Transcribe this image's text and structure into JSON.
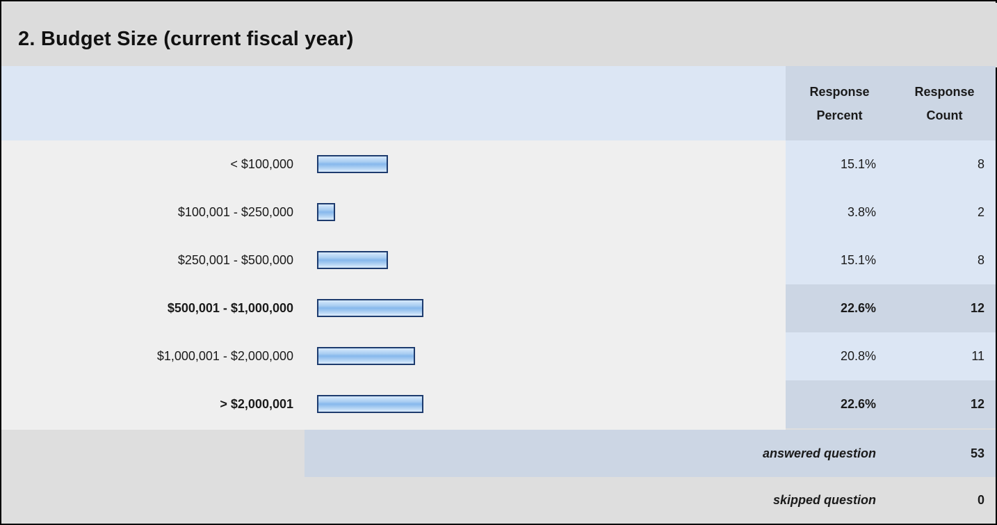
{
  "title": "2. Budget Size (current fiscal year)",
  "headers": {
    "percent_line1": "Response",
    "percent_line2": "Percent",
    "count_line1": "Response",
    "count_line2": "Count"
  },
  "chart_data": {
    "type": "bar",
    "orientation": "horizontal",
    "title": "2. Budget Size (current fiscal year)",
    "categories": [
      "< $100,000",
      "$100,001 - $250,000",
      "$250,001 - $500,000",
      "$500,001 - $1,000,000",
      "$1,000,001 - $2,000,000",
      "> $2,000,001"
    ],
    "values": [
      15.1,
      3.8,
      15.1,
      22.6,
      20.8,
      22.6
    ],
    "percent_labels": [
      "15.1%",
      "3.8%",
      "15.1%",
      "22.6%",
      "20.8%",
      "22.6%"
    ],
    "counts": [
      "8",
      "2",
      "8",
      "12",
      "11",
      "12"
    ],
    "highlighted": [
      false,
      false,
      false,
      true,
      false,
      true
    ],
    "xlim": [
      0,
      100
    ]
  },
  "summary": {
    "answered_label": "answered question",
    "answered_value": "53",
    "skipped_label": "skipped question",
    "skipped_value": "0"
  },
  "colors": {
    "bar_border": "#1d3b6e",
    "bar_fill": "#a9cdf2",
    "header_band": "#dce6f4",
    "highlight_band": "#ccd6e4"
  }
}
